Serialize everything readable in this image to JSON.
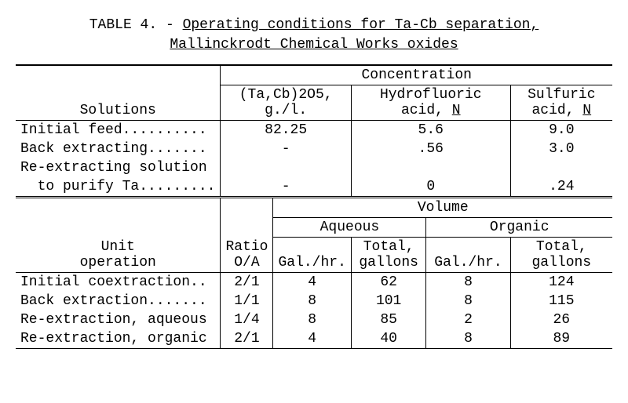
{
  "title": {
    "prefix": "TABLE 4. - ",
    "line1": "Operating conditions for Ta-Cb separation,",
    "line2": "Mallinckrodt Chemical Works oxides"
  },
  "table1": {
    "header": {
      "group": "Concentration",
      "solutions": "Solutions",
      "col1a": "(Ta,Cb)2O5,",
      "col1b": "g./l.",
      "col2": "Hydrofluoric acid, ",
      "col2u": "N",
      "col3": "Sulfuric acid, ",
      "col3u": "N"
    },
    "rows": [
      {
        "label": "Initial feed..........",
        "c1": "82.25",
        "c2": "5.6",
        "c3": "9.0"
      },
      {
        "label": "Back extracting.......",
        "c1": "-",
        "c2": ".56",
        "c3": "3.0"
      },
      {
        "label": "Re-extracting solution",
        "c1": "",
        "c2": "",
        "c3": ""
      },
      {
        "label": "  to purify Ta.........",
        "c1": "-",
        "c2": "0",
        "c3": ".24"
      }
    ]
  },
  "table2": {
    "header": {
      "group": "Volume",
      "aqueous": "Aqueous",
      "organic": "Organic",
      "unit1": "Unit",
      "unit2": "operation",
      "ratio1": "Ratio",
      "ratio2": "O/A",
      "galhr": "Gal./hr.",
      "total1": "Total,",
      "total2": "gallons"
    },
    "rows": [
      {
        "label": "Initial coextraction..",
        "r": "2/1",
        "a1": "4",
        "a2": "62",
        "o1": "8",
        "o2": "124"
      },
      {
        "label": "Back extraction.......",
        "r": "1/1",
        "a1": "8",
        "a2": "101",
        "o1": "8",
        "o2": "115"
      },
      {
        "label": "Re-extraction, aqueous",
        "r": "1/4",
        "a1": "8",
        "a2": "85",
        "o1": "2",
        "o2": "26"
      },
      {
        "label": "Re-extraction, organic",
        "r": "2/1",
        "a1": "4",
        "a2": "40",
        "o1": "8",
        "o2": "89"
      }
    ]
  }
}
